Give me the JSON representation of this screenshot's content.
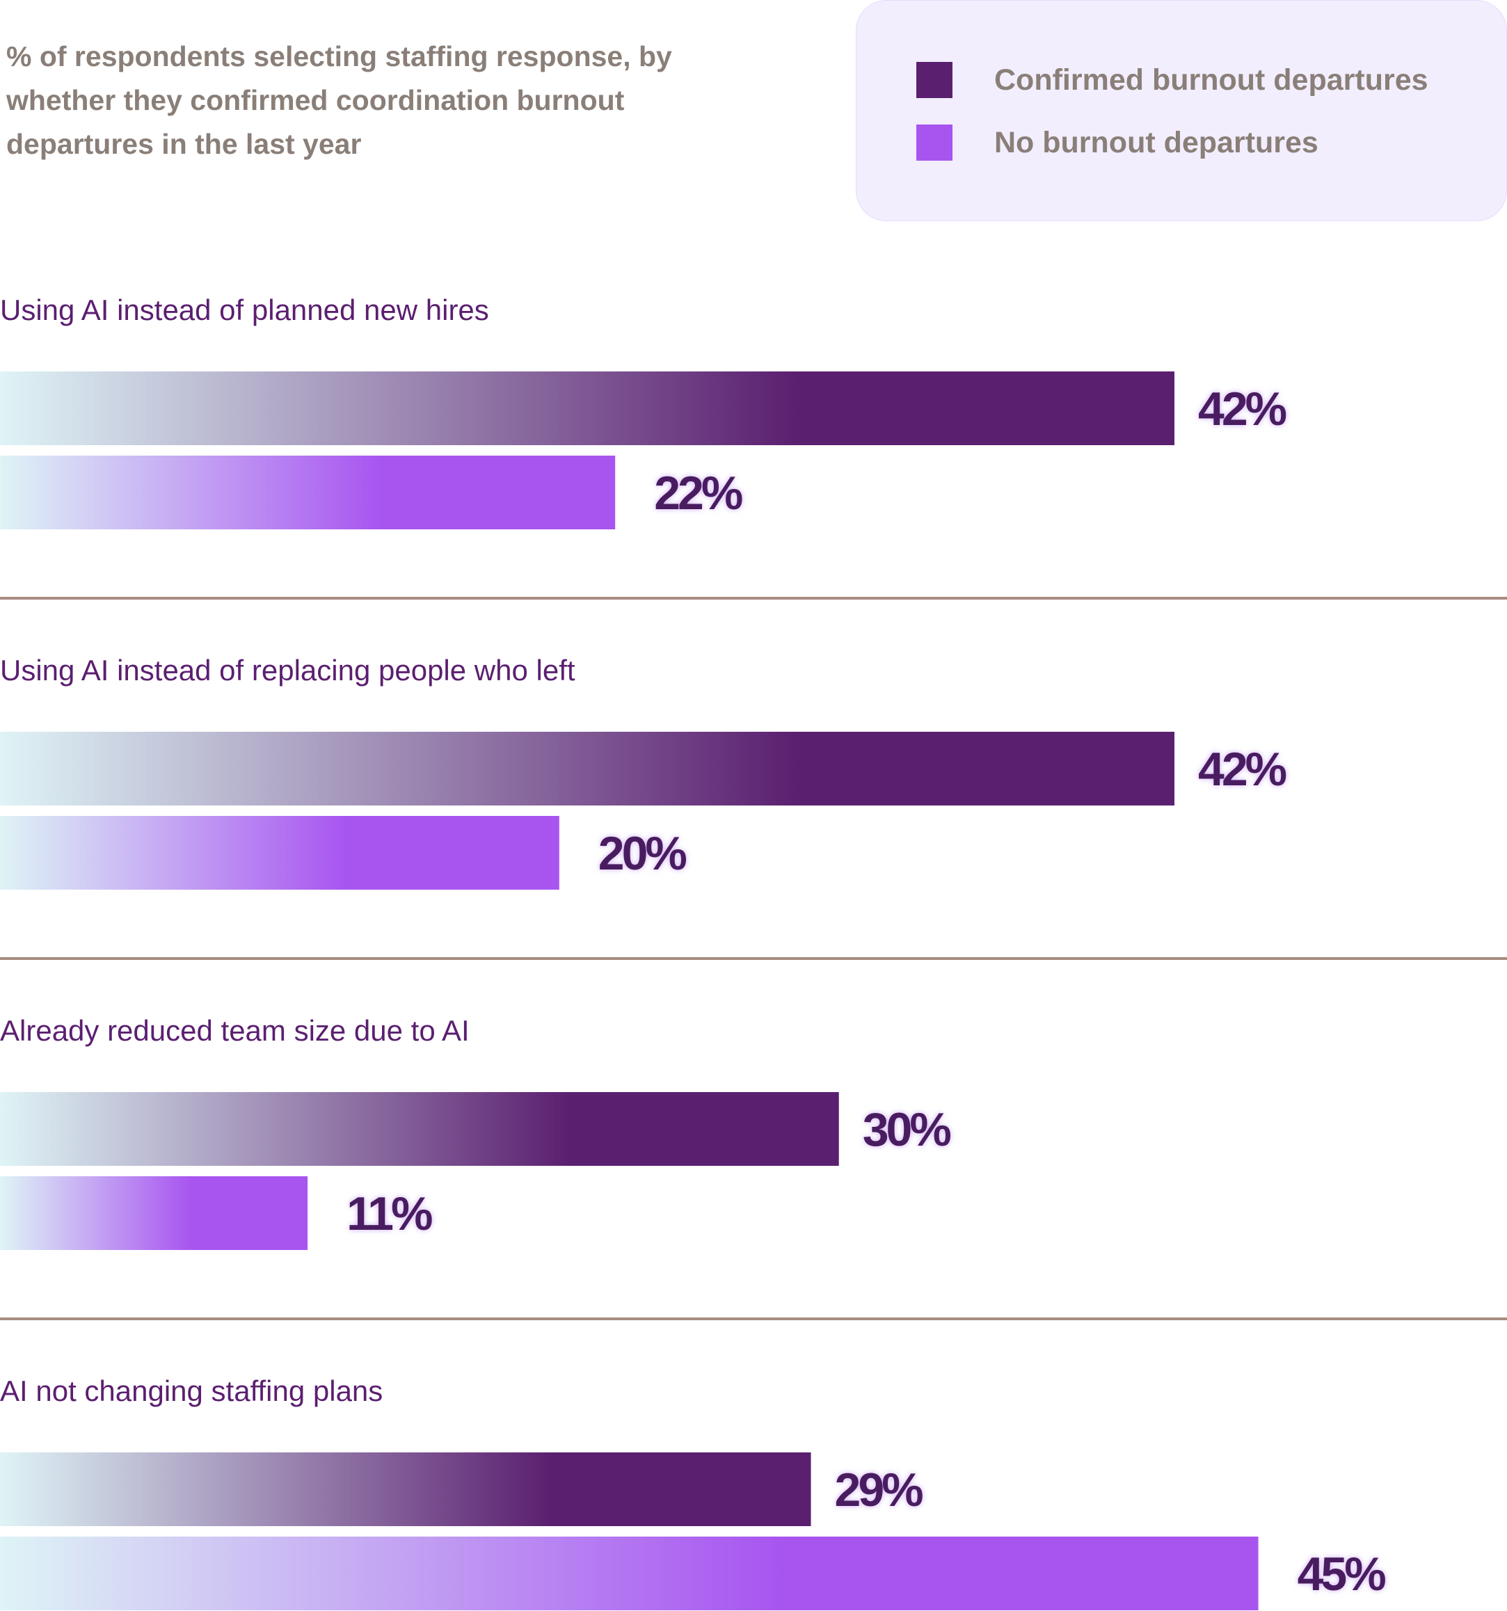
{
  "chart_data": {
    "type": "bar",
    "orientation": "horizontal",
    "subtitle": "% of respondents selecting staffing response, by whether they confirmed coordination burnout departures in the last year",
    "categories": [
      "Using AI instead of planned new hires",
      "Using AI instead of replacing people who left",
      "Already reduced team size due to AI",
      "AI not changing staffing plans"
    ],
    "series": [
      {
        "name": "Confirmed burnout departures",
        "values": [
          42,
          42,
          30,
          29
        ],
        "labels": [
          "42%",
          "42%",
          "30%",
          "29%"
        ]
      },
      {
        "name": "No burnout departures",
        "values": [
          22,
          20,
          11,
          45
        ],
        "labels": [
          "22%",
          "20%",
          "11%",
          "45%"
        ]
      }
    ],
    "xlim": [
      0,
      50
    ],
    "value_unit": "%",
    "legend_position": "top-right",
    "grid": false
  },
  "colors": {
    "confirmed": "#5b1f70",
    "none": "#a855f0",
    "gradient_start": "#dff4f6",
    "divider": "#a88c80"
  }
}
